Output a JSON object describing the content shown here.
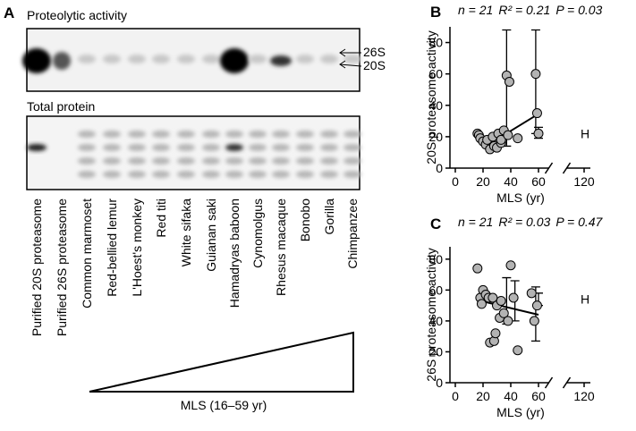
{
  "panel_a": {
    "label": "A",
    "gel1_title": "Proteolytic activity",
    "bands": [
      "26S",
      "20S"
    ],
    "gel2_title": "Total protein",
    "lanes": [
      "Purified 20S proteasome",
      "Purified 26S proteasome",
      "Common marmoset",
      "Red-bellied lemur",
      "L'Hoest's monkey",
      "Red titi",
      "White sifaka",
      "Guianan saki",
      "Hamadryas baboon",
      "Cynomolgus",
      "Rhesus macaque",
      "Bonobo",
      "Gorilla",
      "Chimpanzee"
    ],
    "gradient_label": "MLS (16–59 yr)"
  },
  "chart_data": [
    {
      "type": "scatter",
      "panel_label": "B",
      "stats": [
        "n = 21",
        "R² = 0.21",
        "P = 0.03"
      ],
      "xlabel": "MLS (yr)",
      "ylabel": "20S proteasome activity",
      "xlim": [
        -4,
        124
      ],
      "ylim": [
        0,
        90
      ],
      "xticks": [
        0,
        20,
        40,
        60,
        120
      ],
      "yticks": [
        0,
        20,
        40,
        60,
        80
      ],
      "axis_break": [
        70,
        110
      ],
      "color": "#b3b3b3",
      "x": [
        16,
        17,
        18,
        20,
        22,
        23,
        25,
        27,
        28,
        30,
        31,
        33,
        33,
        35,
        37,
        38,
        39,
        45,
        58,
        59,
        60
      ],
      "values": [
        22,
        21,
        19,
        17,
        15,
        18,
        12,
        20,
        14,
        13,
        22,
        16,
        18,
        24,
        59,
        21,
        55,
        19,
        60,
        35,
        22
      ],
      "error_bars": [
        {
          "x": 37,
          "value": 29,
          "lower": 14,
          "upper": 88
        },
        {
          "x": 58,
          "value": 34,
          "lower": 22,
          "upper": 88
        },
        {
          "x": 60,
          "value": 22,
          "lower": 19,
          "upper": 26
        }
      ],
      "fit": {
        "x": [
          22,
          59
        ],
        "values": [
          14,
          34
        ]
      },
      "annotation": "H"
    },
    {
      "type": "scatter",
      "panel_label": "C",
      "stats": [
        "n = 21",
        "R² = 0.03",
        "P = 0.47"
      ],
      "xlabel": "MLS (yr)",
      "ylabel": "26S proteasome activity",
      "xlim": [
        -4,
        124
      ],
      "ylim": [
        0,
        88
      ],
      "xticks": [
        0,
        20,
        40,
        60,
        120
      ],
      "yticks": [
        0,
        20,
        40,
        60,
        80
      ],
      "axis_break": [
        70,
        110
      ],
      "color": "#b3b3b3",
      "x": [
        16,
        18,
        19,
        20,
        22,
        24,
        25,
        27,
        28,
        29,
        30,
        32,
        33,
        35,
        38,
        40,
        42,
        45,
        55,
        57,
        59
      ],
      "values": [
        74,
        55,
        51,
        60,
        57,
        55,
        26,
        55,
        27,
        32,
        50,
        42,
        53,
        45,
        40,
        76,
        55,
        21,
        58,
        40,
        50
      ],
      "error_bars": [
        {
          "x": 37,
          "value": 48,
          "lower": 38,
          "upper": 68
        },
        {
          "x": 43,
          "value": 47,
          "lower": 40,
          "upper": 66
        },
        {
          "x": 58,
          "value": 45,
          "lower": 27,
          "upper": 62
        },
        {
          "x": 60,
          "value": 54,
          "lower": 50,
          "upper": 58
        }
      ],
      "fit": {
        "x": [
          18,
          60
        ],
        "values": [
          53,
          44
        ]
      },
      "annotation": "H"
    }
  ]
}
